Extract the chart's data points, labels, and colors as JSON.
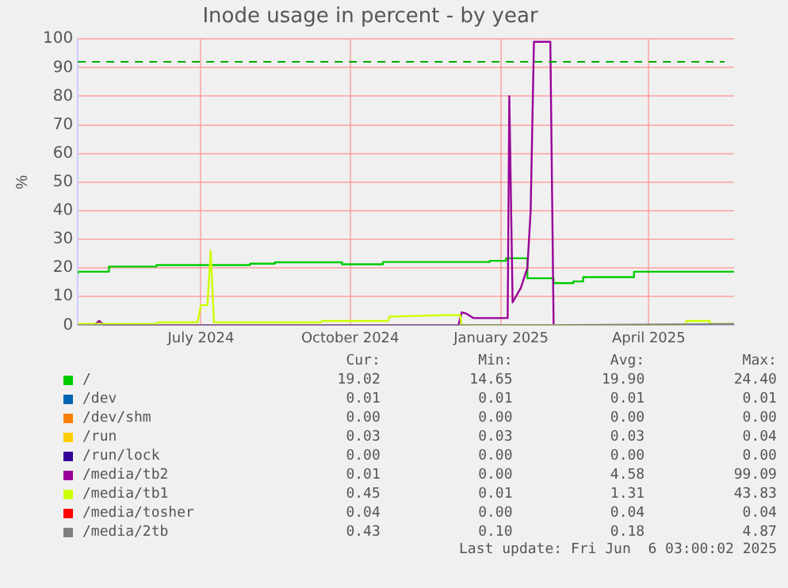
{
  "chart_data": {
    "type": "line",
    "title": "Inode usage in percent - by year",
    "ylabel": "%",
    "xlim": [
      "2024-05-02",
      "2025-06-06"
    ],
    "xticks": [
      {
        "value": "2024-07-16",
        "label": "July 2024"
      },
      {
        "value": "2024-10-15",
        "label": "October 2024"
      },
      {
        "value": "2025-01-15",
        "label": "January 2025"
      },
      {
        "value": "2025-04-15",
        "label": "April 2025"
      }
    ],
    "ylim": [
      0,
      100
    ],
    "yticks": [
      0,
      10,
      20,
      30,
      40,
      50,
      60,
      70,
      80,
      90,
      100
    ],
    "grid": true,
    "legend": "bottom",
    "marker": "none",
    "ref_lines": [
      {
        "axis": "y",
        "value": 92,
        "color": "#00aa00",
        "line_style": "dashed"
      }
    ],
    "series": [
      {
        "name": "/",
        "color": "#00cc00",
        "type": "step",
        "x": [
          "2024-05-02",
          "2024-05-21",
          "2024-06-19",
          "2024-08-15",
          "2024-08-30",
          "2024-10-10",
          "2024-11-04",
          "2025-01-08",
          "2025-01-18",
          "2025-01-31",
          "2025-02-16",
          "2025-02-28",
          "2025-03-06",
          "2025-04-06",
          "2025-05-22",
          "2025-06-06"
        ],
        "values": [
          18,
          18.7,
          20.5,
          21,
          21.5,
          22,
          21.3,
          22.1,
          22.5,
          23.4,
          16.4,
          14.7,
          15.3,
          16.8,
          18.7,
          18.7
        ]
      },
      {
        "name": "/dev",
        "color": "#0066b3"
      },
      {
        "name": "/dev/shm",
        "color": "#ff8000"
      },
      {
        "name": "/run",
        "color": "#ffcc00"
      },
      {
        "name": "/run/lock",
        "color": "#330099"
      },
      {
        "name": "/media/tb2",
        "color": "#990099",
        "x": [
          "2024-05-12",
          "2024-05-15",
          "2024-05-18",
          "2024-12-20",
          "2024-12-22",
          "2024-12-25",
          "2024-12-29",
          "2025-01-19",
          "2025-01-20",
          "2025-01-22",
          "2025-01-27",
          "2025-01-31",
          "2025-02-02",
          "2025-02-04",
          "2025-02-14",
          "2025-02-16"
        ],
        "values": [
          0,
          1.5,
          0,
          0,
          4.5,
          4,
          2.5,
          2.5,
          80,
          8,
          13,
          20,
          40,
          99,
          99,
          0
        ]
      },
      {
        "name": "/media/tb1",
        "color": "#ccff00",
        "x": [
          "2024-05-02",
          "2024-06-19",
          "2024-06-20",
          "2024-07-14",
          "2024-07-16",
          "2024-07-20",
          "2024-07-22",
          "2024-07-24",
          "2024-09-27",
          "2024-09-28",
          "2024-11-07",
          "2024-11-08",
          "2024-12-10",
          "2024-12-21",
          "2024-12-22",
          "2025-05-07",
          "2025-05-08",
          "2025-05-22",
          "2025-05-23",
          "2025-06-06"
        ],
        "values": [
          0.5,
          0.5,
          1,
          1,
          7,
          7,
          26,
          1,
          1,
          1.5,
          1.5,
          3,
          3.5,
          3.5,
          0,
          0,
          1.5,
          1.5,
          0.5,
          0.5
        ]
      },
      {
        "name": "/media/tosher",
        "color": "#ff0000"
      },
      {
        "name": "/media/2tb",
        "color": "#808080",
        "x": [
          "2024-05-02",
          "2025-02-16",
          "2025-06-06"
        ],
        "values": [
          0,
          0,
          0.4
        ]
      }
    ],
    "annotations": [
      "Cur:",
      "Min:",
      "Avg:",
      "Max:",
      "19.02",
      "14.65",
      "19.90",
      "24.40",
      "0.01",
      "0.01",
      "0.01",
      "0.01",
      "0.00",
      "0.00",
      "0.00",
      "0.00",
      "0.03",
      "0.03",
      "0.03",
      "0.04",
      "0.00",
      "0.00",
      "0.00",
      "0.00",
      "0.01",
      "0.00",
      "4.58",
      "99.09",
      "0.45",
      "0.01",
      "1.31",
      "43.83",
      "0.04",
      "0.00",
      "0.04",
      "0.04",
      "0.43",
      "0.10",
      "0.18",
      "4.87",
      "Last update: Fri Jun  6 03:00:02 2025"
    ]
  }
}
